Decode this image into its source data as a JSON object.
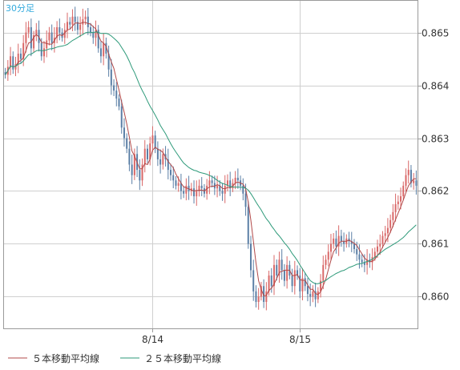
{
  "period_label": "30分足",
  "colors": {
    "up": "#d96868",
    "down": "#5b7fa6",
    "ma5": "#b04848",
    "ma25": "#2e9a7a",
    "grid": "#cfcfcf",
    "frame": "#9a9a9a"
  },
  "legend": [
    {
      "label": "５本移動平均線",
      "color": "#b04848"
    },
    {
      "label": "２５本移動平均線",
      "color": "#2e9a7a"
    }
  ],
  "chart_data": {
    "type": "candlestick",
    "ylim": [
      0.8594,
      0.8656
    ],
    "yticks": [
      0.86,
      0.861,
      0.862,
      0.863,
      0.864,
      0.865
    ],
    "ytick_labels": [
      "0.860",
      "0.861",
      "0.862",
      "0.863",
      "0.864",
      "0.865"
    ],
    "xticks": [
      {
        "index": 57,
        "label": "8/14"
      },
      {
        "index": 114,
        "label": "8/15"
      }
    ],
    "n_bars": 160,
    "grid": true,
    "y_axis_side": "right",
    "close": [
      0.8642,
      0.86435,
      0.86455,
      0.8643,
      0.8644,
      0.8646,
      0.8645,
      0.8648,
      0.865,
      0.8651,
      0.8647,
      0.86495,
      0.86505,
      0.8648,
      0.86455,
      0.8647,
      0.86485,
      0.865,
      0.8648,
      0.8649,
      0.8651,
      0.865,
      0.8649,
      0.86505,
      0.8652,
      0.86515,
      0.8653,
      0.8652,
      0.86505,
      0.86515,
      0.86525,
      0.8653,
      0.8651,
      0.865,
      0.8649,
      0.86505,
      0.8647,
      0.86455,
      0.8648,
      0.8646,
      0.8643,
      0.864,
      0.8639,
      0.86375,
      0.8636,
      0.8632,
      0.863,
      0.8628,
      0.8625,
      0.8623,
      0.8627,
      0.8624,
      0.8622,
      0.8625,
      0.8628,
      0.8626,
      0.8629,
      0.86305,
      0.8628,
      0.8626,
      0.8625,
      0.8627,
      0.8626,
      0.8624,
      0.8623,
      0.8622,
      0.8621,
      0.86215,
      0.862,
      0.86195,
      0.8621,
      0.862,
      0.86205,
      0.8619,
      0.862,
      0.8621,
      0.86205,
      0.86195,
      0.8621,
      0.8622,
      0.86215,
      0.86205,
      0.8621,
      0.862,
      0.86195,
      0.8621,
      0.8622,
      0.86205,
      0.86215,
      0.86225,
      0.8622,
      0.8621,
      0.86195,
      0.8617,
      0.861,
      0.8605,
      0.8601,
      0.8599,
      0.86,
      0.8602,
      0.8599,
      0.8601,
      0.8604,
      0.8602,
      0.8606,
      0.8604,
      0.8607,
      0.8605,
      0.8603,
      0.8606,
      0.8604,
      0.8602,
      0.8605,
      0.8604,
      0.8601,
      0.86035,
      0.8602,
      0.86005,
      0.86,
      0.8601,
      0.85995,
      0.8601,
      0.8603,
      0.8606,
      0.8607,
      0.86085,
      0.861,
      0.8611,
      0.86095,
      0.86115,
      0.86105,
      0.861,
      0.8611,
      0.86105,
      0.861,
      0.8609,
      0.8608,
      0.8607,
      0.86065,
      0.8606,
      0.8607,
      0.86065,
      0.86075,
      0.86085,
      0.86095,
      0.861,
      0.86115,
      0.8612,
      0.8613,
      0.86145,
      0.8616,
      0.86175,
      0.8618,
      0.8619,
      0.8621,
      0.8623,
      0.8624,
      0.86215,
      0.8622,
      0.8621
    ],
    "series": [
      {
        "name": "５本移動平均線",
        "period": 5
      },
      {
        "name": "２５本移動平均線",
        "period": 25
      }
    ]
  }
}
